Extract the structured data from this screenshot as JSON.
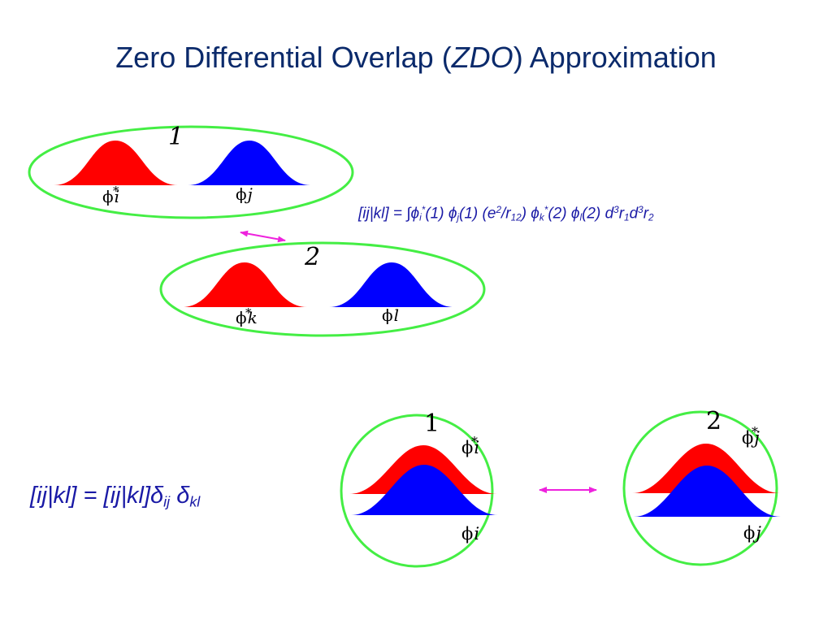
{
  "title": {
    "main": "Zero Differential Overlap (",
    "abbr": "ZDO",
    "tail": ") Approximation"
  },
  "labels": {
    "electron1": "1",
    "electron2": "2",
    "phi": "ϕ",
    "star": "*",
    "i": "i",
    "j": "j",
    "k": "k",
    "l": "l"
  },
  "eq1": {
    "lhs": "[ij|kl] = ",
    "integral": "∫",
    "phi": "ϕ",
    "i": "i",
    "star": "*",
    "one": "(1) ",
    "j": "j",
    "one_b": "(1) (e",
    "two": "2",
    "slash_r": "/r",
    "twelve": "12",
    "close": ") ",
    "k": "k",
    "two_a": "(2) ",
    "l": "l",
    "two_b": "(2) d",
    "three": "3",
    "r": "r",
    "sub1": "1",
    "d": "d",
    "sub2": "2"
  },
  "eq2": {
    "text": "[ij|kl] = [ij|kl]",
    "delta": "δ",
    "ij": "ij",
    "space": " ",
    "kl": "kl"
  },
  "colors": {
    "red": "#ff0000",
    "blue": "#0000ff",
    "green": "#44ee44",
    "magenta": "#ee22dd",
    "title": "#0b2a6b",
    "equation": "#1a1aa6"
  }
}
